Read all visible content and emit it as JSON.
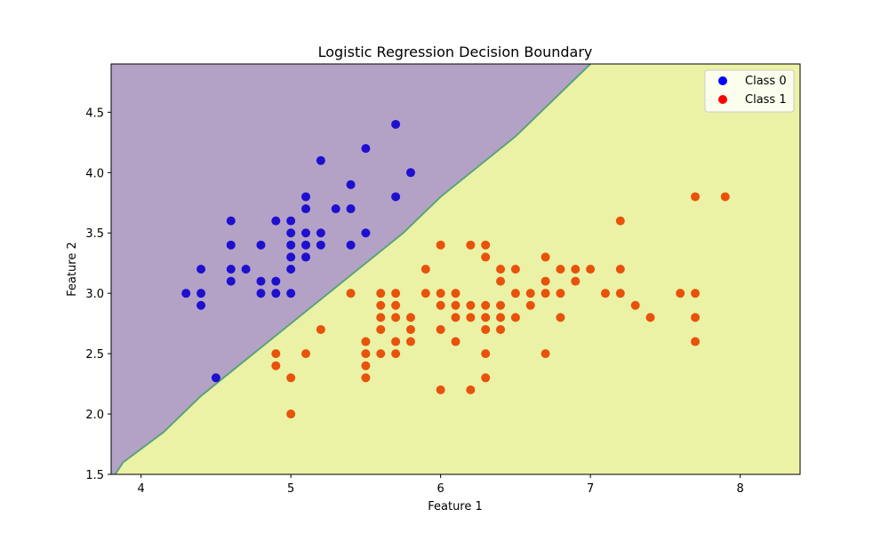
{
  "chart_data": {
    "type": "scatter",
    "title": "Logistic Regression Decision Boundary",
    "xlabel": "Feature 1",
    "ylabel": "Feature 2",
    "xlim": [
      3.8,
      8.4
    ],
    "ylim": [
      1.5,
      4.9
    ],
    "xticks": [
      4,
      5,
      6,
      7,
      8
    ],
    "yticks": [
      1.5,
      2.0,
      2.5,
      3.0,
      3.5,
      4.0,
      4.5
    ],
    "grid": false,
    "legend_position": "top-right",
    "decision_boundary": {
      "points": [
        [
          3.8,
          1.45
        ],
        [
          3.88,
          1.6
        ],
        [
          4.15,
          1.85
        ],
        [
          4.4,
          2.15
        ],
        [
          4.65,
          2.4
        ],
        [
          4.9,
          2.65
        ],
        [
          5.15,
          2.9
        ],
        [
          5.45,
          3.2
        ],
        [
          5.75,
          3.5
        ],
        [
          6.0,
          3.8
        ],
        [
          6.25,
          4.05
        ],
        [
          6.5,
          4.3
        ],
        [
          6.75,
          4.6
        ],
        [
          7.0,
          4.9
        ]
      ],
      "region_colors": {
        "class_0": "#b3a2c6",
        "class_1": "#ebf2a6"
      },
      "line_color": "#5aa37a"
    },
    "series": [
      {
        "name": "Class 0",
        "color": "#1f0fcf",
        "legend_color": "#0000ff",
        "points": [
          [
            4.3,
            3.0
          ],
          [
            4.4,
            3.2
          ],
          [
            4.4,
            3.0
          ],
          [
            4.4,
            2.9
          ],
          [
            4.5,
            2.3
          ],
          [
            4.6,
            3.6
          ],
          [
            4.6,
            3.4
          ],
          [
            4.6,
            3.2
          ],
          [
            4.6,
            3.1
          ],
          [
            4.7,
            3.2
          ],
          [
            4.8,
            3.4
          ],
          [
            4.8,
            3.1
          ],
          [
            4.8,
            3.0
          ],
          [
            4.9,
            3.6
          ],
          [
            4.9,
            3.1
          ],
          [
            4.9,
            3.0
          ],
          [
            5.0,
            3.6
          ],
          [
            5.0,
            3.5
          ],
          [
            5.0,
            3.4
          ],
          [
            5.0,
            3.3
          ],
          [
            5.0,
            3.2
          ],
          [
            5.0,
            3.0
          ],
          [
            5.1,
            3.8
          ],
          [
            5.1,
            3.7
          ],
          [
            5.1,
            3.5
          ],
          [
            5.1,
            3.4
          ],
          [
            5.1,
            3.3
          ],
          [
            5.2,
            4.1
          ],
          [
            5.2,
            3.5
          ],
          [
            5.2,
            3.4
          ],
          [
            5.3,
            3.7
          ],
          [
            5.4,
            3.9
          ],
          [
            5.4,
            3.7
          ],
          [
            5.4,
            3.4
          ],
          [
            5.5,
            4.2
          ],
          [
            5.5,
            3.5
          ],
          [
            5.7,
            4.4
          ],
          [
            5.7,
            3.8
          ],
          [
            5.8,
            4.0
          ]
        ]
      },
      {
        "name": "Class 1",
        "color": "#e8520a",
        "legend_color": "#ff0000",
        "points": [
          [
            4.9,
            2.5
          ],
          [
            4.9,
            2.4
          ],
          [
            5.0,
            2.3
          ],
          [
            5.0,
            2.0
          ],
          [
            5.1,
            2.5
          ],
          [
            5.2,
            2.7
          ],
          [
            5.4,
            3.0
          ],
          [
            5.5,
            2.6
          ],
          [
            5.5,
            2.5
          ],
          [
            5.5,
            2.4
          ],
          [
            5.5,
            2.3
          ],
          [
            5.6,
            3.0
          ],
          [
            5.6,
            2.9
          ],
          [
            5.6,
            2.8
          ],
          [
            5.6,
            2.7
          ],
          [
            5.6,
            2.5
          ],
          [
            5.7,
            3.0
          ],
          [
            5.7,
            2.9
          ],
          [
            5.7,
            2.8
          ],
          [
            5.7,
            2.6
          ],
          [
            5.7,
            2.5
          ],
          [
            5.8,
            2.8
          ],
          [
            5.8,
            2.7
          ],
          [
            5.8,
            2.6
          ],
          [
            5.9,
            3.2
          ],
          [
            5.9,
            3.0
          ],
          [
            6.0,
            3.4
          ],
          [
            6.0,
            3.0
          ],
          [
            6.0,
            2.9
          ],
          [
            6.0,
            2.7
          ],
          [
            6.0,
            2.2
          ],
          [
            6.1,
            3.0
          ],
          [
            6.1,
            2.9
          ],
          [
            6.1,
            2.8
          ],
          [
            6.1,
            2.6
          ],
          [
            6.2,
            3.4
          ],
          [
            6.2,
            2.9
          ],
          [
            6.2,
            2.8
          ],
          [
            6.2,
            2.2
          ],
          [
            6.3,
            3.4
          ],
          [
            6.3,
            3.3
          ],
          [
            6.3,
            2.9
          ],
          [
            6.3,
            2.8
          ],
          [
            6.3,
            2.7
          ],
          [
            6.3,
            2.5
          ],
          [
            6.3,
            2.3
          ],
          [
            6.4,
            3.2
          ],
          [
            6.4,
            3.1
          ],
          [
            6.4,
            2.9
          ],
          [
            6.4,
            2.8
          ],
          [
            6.4,
            2.7
          ],
          [
            6.5,
            3.2
          ],
          [
            6.5,
            3.0
          ],
          [
            6.5,
            2.8
          ],
          [
            6.6,
            3.0
          ],
          [
            6.6,
            2.9
          ],
          [
            6.7,
            3.3
          ],
          [
            6.7,
            3.1
          ],
          [
            6.7,
            3.0
          ],
          [
            6.7,
            2.5
          ],
          [
            6.8,
            3.2
          ],
          [
            6.8,
            3.0
          ],
          [
            6.8,
            2.8
          ],
          [
            6.9,
            3.2
          ],
          [
            6.9,
            3.1
          ],
          [
            7.0,
            3.2
          ],
          [
            7.1,
            3.0
          ],
          [
            7.2,
            3.6
          ],
          [
            7.2,
            3.2
          ],
          [
            7.2,
            3.0
          ],
          [
            7.3,
            2.9
          ],
          [
            7.4,
            2.8
          ],
          [
            7.6,
            3.0
          ],
          [
            7.7,
            3.8
          ],
          [
            7.7,
            3.0
          ],
          [
            7.7,
            2.8
          ],
          [
            7.7,
            2.6
          ],
          [
            7.9,
            3.8
          ]
        ]
      }
    ]
  }
}
